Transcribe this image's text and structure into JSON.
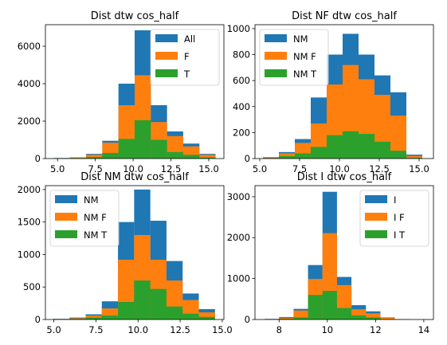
{
  "chart_data": [
    {
      "type": "bar",
      "title": "Dist dtw cos_half",
      "xlim": [
        4.2,
        16.0
      ],
      "ylim": [
        0,
        7150
      ],
      "xticks": [
        5.0,
        7.5,
        10.0,
        12.5,
        15.0
      ],
      "xtick_labels": [
        "5.0",
        "7.5",
        "10.0",
        "12.5",
        "15.0"
      ],
      "yticks": [
        0,
        2000,
        4000,
        6000
      ],
      "ytick_labels": [
        "0",
        "2000",
        "4000",
        "6000"
      ],
      "bin_edges": [
        4.75,
        5.82,
        6.89,
        7.96,
        9.03,
        10.1,
        11.17,
        12.24,
        13.31,
        14.38,
        15.45
      ],
      "legend_position": "top-right",
      "series": [
        {
          "name": "All",
          "color": "#1f77b4",
          "values": [
            30,
            60,
            250,
            950,
            4000,
            6850,
            2850,
            1450,
            800,
            250
          ]
        },
        {
          "name": "F",
          "color": "#ff7f0e",
          "values": [
            20,
            50,
            200,
            850,
            2850,
            4450,
            1950,
            1200,
            650,
            200
          ]
        },
        {
          "name": "T",
          "color": "#2ca02c",
          "values": [
            10,
            30,
            80,
            300,
            1050,
            2050,
            1000,
            350,
            200,
            50
          ]
        }
      ]
    },
    {
      "type": "bar",
      "title": "Dist NF dtw cos_half",
      "xlim": [
        4.7,
        15.9
      ],
      "ylim": [
        0,
        1030
      ],
      "xticks": [
        5.0,
        7.5,
        10.0,
        12.5,
        15.0
      ],
      "xtick_labels": [
        "5.0",
        "7.5",
        "10.0",
        "12.5",
        "15.0"
      ],
      "yticks": [
        0,
        200,
        400,
        600,
        800,
        1000
      ],
      "ytick_labels": [
        "0",
        "200",
        "400",
        "600",
        "800",
        "1000"
      ],
      "bin_edges": [
        5.2,
        6.2,
        7.2,
        8.2,
        9.2,
        10.2,
        11.2,
        12.2,
        13.2,
        14.2,
        15.2
      ],
      "legend_position": "top-left",
      "series": [
        {
          "name": "NM",
          "color": "#1f77b4",
          "values": [
            10,
            50,
            150,
            470,
            800,
            960,
            800,
            640,
            510,
            30
          ]
        },
        {
          "name": "NM F",
          "color": "#ff7f0e",
          "values": [
            5,
            40,
            120,
            270,
            570,
            720,
            610,
            490,
            330,
            20
          ]
        },
        {
          "name": "NM T",
          "color": "#2ca02c",
          "values": [
            2,
            20,
            40,
            90,
            180,
            210,
            190,
            130,
            60,
            5
          ]
        }
      ]
    },
    {
      "type": "bar",
      "title": "Dist NM dtw cos_half",
      "xlim": [
        4.5,
        15.1
      ],
      "ylim": [
        0,
        2060
      ],
      "xticks": [
        5.0,
        7.5,
        10.0,
        12.5,
        15.0
      ],
      "xtick_labels": [
        "5.0",
        "7.5",
        "10.0",
        "12.5",
        "15.0"
      ],
      "yticks": [
        0,
        500,
        1000,
        1500,
        2000
      ],
      "ytick_labels": [
        "0",
        "500",
        "1000",
        "1500",
        "2000"
      ],
      "bin_edges": [
        4.97,
        5.93,
        6.89,
        7.85,
        8.81,
        9.77,
        10.73,
        11.69,
        12.65,
        13.61,
        14.57
      ],
      "legend_position": "top-left",
      "series": [
        {
          "name": "NM",
          "color": "#1f77b4",
          "values": [
            10,
            30,
            80,
            280,
            1500,
            2000,
            1520,
            900,
            400,
            160
          ]
        },
        {
          "name": "NM F",
          "color": "#ff7f0e",
          "values": [
            5,
            20,
            60,
            170,
            920,
            1300,
            920,
            600,
            300,
            110
          ]
        },
        {
          "name": "NM T",
          "color": "#2ca02c",
          "values": [
            2,
            10,
            30,
            60,
            270,
            600,
            470,
            200,
            90,
            40
          ]
        }
      ]
    },
    {
      "type": "bar",
      "title": "Dist I dtw cos_half",
      "xlim": [
        7.0,
        14.4
      ],
      "ylim": [
        0,
        3270
      ],
      "xticks": [
        8,
        10,
        12,
        14
      ],
      "xtick_labels": [
        "8",
        "10",
        "12",
        "14"
      ],
      "yticks": [
        0,
        1000,
        2000,
        3000
      ],
      "ytick_labels": [
        "0",
        "1000",
        "2000",
        "3000"
      ],
      "bin_edges": [
        7.4,
        8.0,
        8.6,
        9.2,
        9.8,
        10.4,
        11.0,
        11.6,
        12.2,
        12.8,
        13.4
      ],
      "legend_position": "top-right",
      "series": [
        {
          "name": "I",
          "color": "#1f77b4",
          "values": [
            15,
            60,
            260,
            1330,
            3120,
            1040,
            350,
            200,
            50,
            10
          ]
        },
        {
          "name": "I F",
          "color": "#ff7f0e",
          "values": [
            10,
            40,
            220,
            990,
            2110,
            840,
            250,
            150,
            40,
            5
          ]
        },
        {
          "name": "I T",
          "color": "#2ca02c",
          "values": [
            5,
            20,
            50,
            600,
            700,
            280,
            100,
            50,
            10,
            2
          ]
        }
      ]
    }
  ]
}
